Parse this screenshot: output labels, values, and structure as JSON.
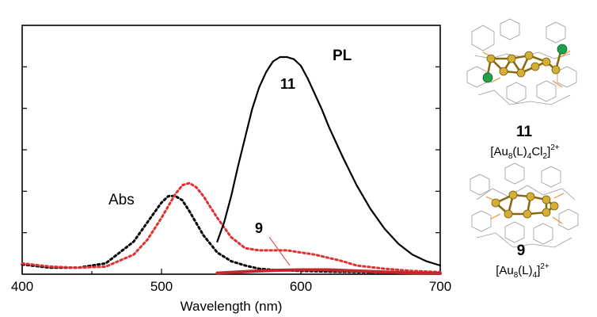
{
  "chart_data": {
    "type": "line",
    "title": "",
    "xlabel": "Wavelength (nm)",
    "ylabel": "",
    "xlim": [
      400,
      700
    ],
    "ylim": [
      0,
      1
    ],
    "x_ticks": [
      "400",
      "500",
      "600",
      "700"
    ],
    "y_ticks_labeled": false,
    "grid": false,
    "legend": "none",
    "series": [
      {
        "name": "Abs",
        "cluster": "11",
        "color": "#000000",
        "style": "dotted",
        "x": [
          400,
          420,
          440,
          460,
          480,
          490,
          500,
          505,
          510,
          515,
          520,
          530,
          540,
          550,
          560,
          570,
          580,
          600,
          620,
          640,
          660,
          680,
          700
        ],
        "y": [
          0.045,
          0.03,
          0.03,
          0.05,
          0.15,
          0.24,
          0.33,
          0.36,
          0.36,
          0.34,
          0.29,
          0.18,
          0.1,
          0.06,
          0.04,
          0.025,
          0.02,
          0.015,
          0.012,
          0.01,
          0.008,
          0.006,
          0.005
        ]
      },
      {
        "name": "Abs",
        "cluster": "9",
        "color": "#e03030",
        "style": "dotted",
        "x": [
          400,
          420,
          440,
          460,
          480,
          490,
          500,
          510,
          515,
          520,
          525,
          530,
          540,
          550,
          560,
          570,
          580,
          590,
          600,
          610,
          620,
          630,
          640,
          660,
          680,
          700
        ],
        "y": [
          0.05,
          0.035,
          0.03,
          0.035,
          0.09,
          0.16,
          0.26,
          0.37,
          0.41,
          0.42,
          0.4,
          0.36,
          0.26,
          0.17,
          0.12,
          0.11,
          0.11,
          0.11,
          0.1,
          0.09,
          0.075,
          0.06,
          0.04,
          0.025,
          0.015,
          0.01
        ]
      },
      {
        "name": "PL",
        "cluster": "11",
        "color": "#000000",
        "style": "solid",
        "x": [
          540,
          545,
          550,
          555,
          560,
          565,
          570,
          575,
          580,
          585,
          590,
          595,
          600,
          605,
          610,
          615,
          620,
          630,
          640,
          650,
          660,
          670,
          680,
          690,
          700
        ],
        "y": [
          0.15,
          0.24,
          0.36,
          0.5,
          0.63,
          0.76,
          0.86,
          0.93,
          0.98,
          1.0,
          1.0,
          0.99,
          0.96,
          0.9,
          0.83,
          0.76,
          0.68,
          0.54,
          0.41,
          0.3,
          0.21,
          0.14,
          0.09,
          0.06,
          0.04
        ]
      },
      {
        "name": "PL",
        "cluster": "9",
        "color": "#c0282d",
        "style": "solid",
        "x": [
          540,
          560,
          580,
          600,
          620,
          640,
          660,
          680,
          700
        ],
        "y": [
          0.005,
          0.012,
          0.018,
          0.02,
          0.02,
          0.015,
          0.01,
          0.006,
          0.004
        ]
      }
    ],
    "annotations": [
      {
        "text": "PL",
        "bold": true
      },
      {
        "text": "11",
        "bold": true
      },
      {
        "text": "Abs",
        "bold": false
      },
      {
        "text": "9",
        "bold": true
      }
    ]
  },
  "structures": [
    {
      "label": "11",
      "formula": {
        "pre": "[Au",
        "s1": "8",
        "mid1": "(L)",
        "s2": "4",
        "mid2": "Cl",
        "s3": "2",
        "post": "]",
        "charge": "2+"
      },
      "atoms": {
        "gold": "#d4af37",
        "chlorine": "#1fa04a",
        "phosphorus": "#f0902a",
        "ligand": "#9a9a9a"
      }
    },
    {
      "label": "9",
      "formula": {
        "pre": "[Au",
        "s1": "8",
        "mid1": "(L)",
        "s2": "4",
        "post": "]",
        "charge": "2+"
      },
      "atoms": {
        "gold": "#d4af37",
        "phosphorus": "#f0902a",
        "ligand": "#9a9a9a"
      }
    }
  ]
}
